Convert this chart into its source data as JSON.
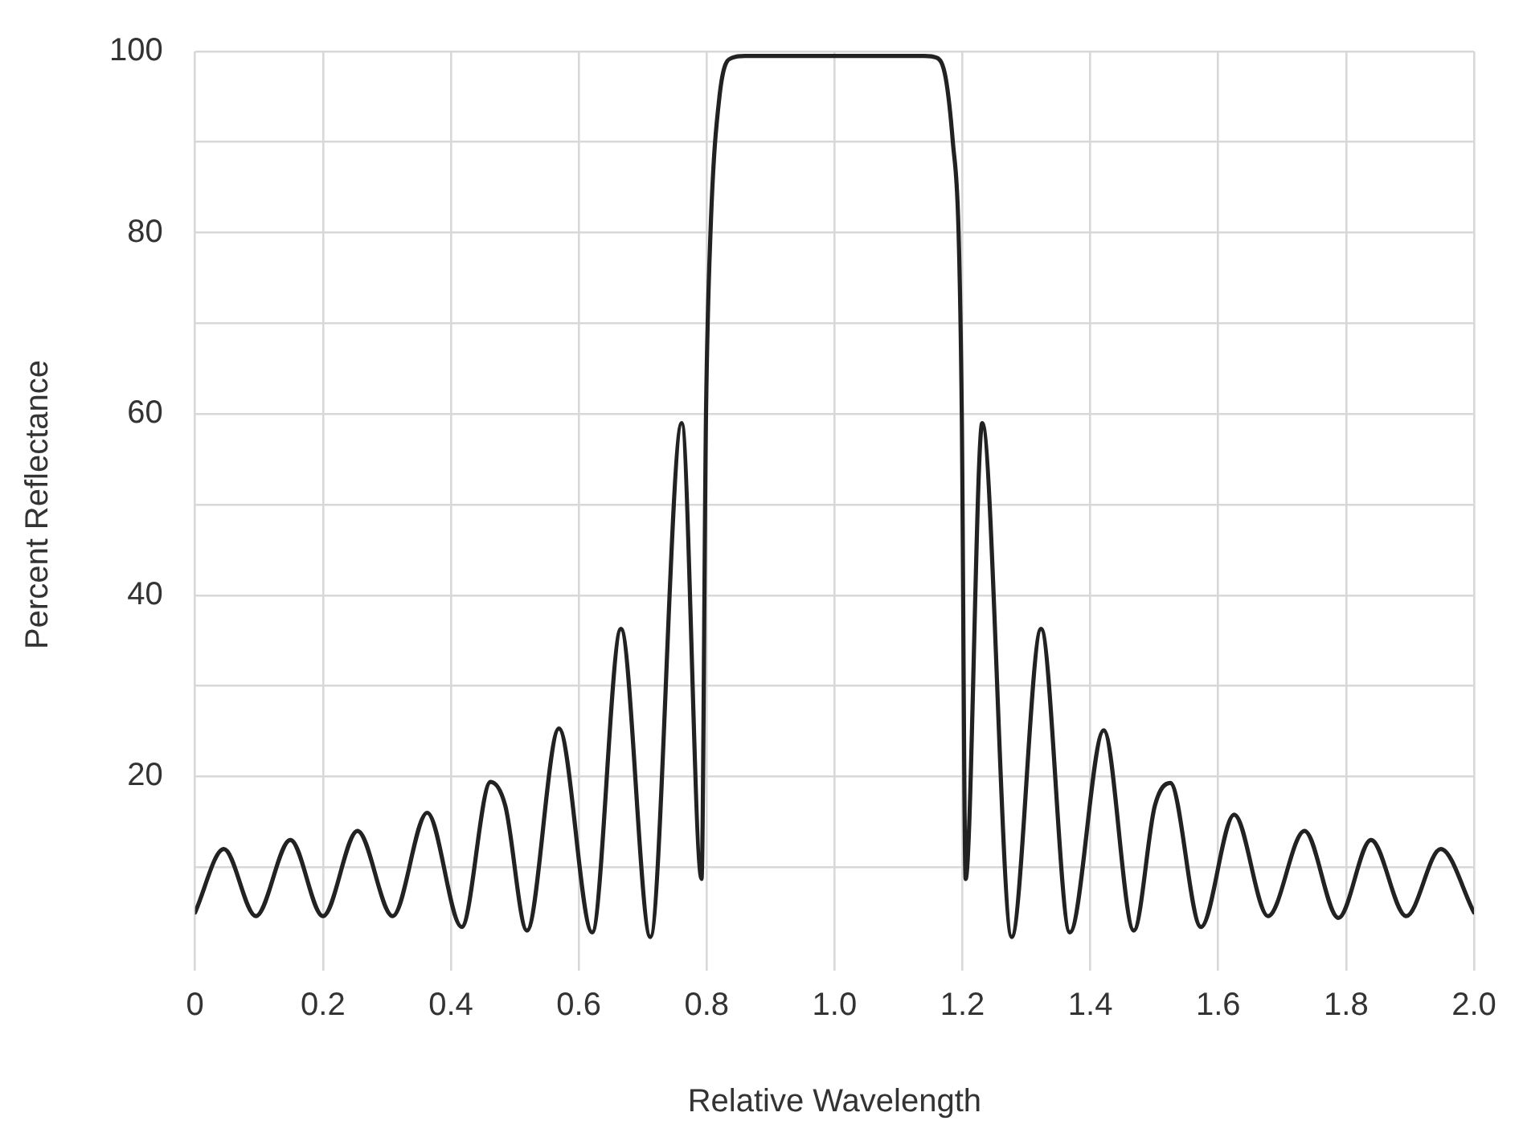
{
  "chart_data": {
    "type": "line",
    "xlabel": "Relative Wavelength",
    "ylabel": "Percent Reflectance",
    "x": [
      0,
      0.045,
      0.095,
      0.149,
      0.2,
      0.254,
      0.309,
      0.363,
      0.417,
      0.462,
      0.485,
      0.519,
      0.569,
      0.621,
      0.666,
      0.712,
      0.761,
      0.792,
      0.799,
      0.806,
      0.82,
      0.84,
      0.86,
      1.0,
      1.14,
      1.16,
      1.174,
      1.185,
      1.194,
      1.199,
      1.205,
      1.231,
      1.277,
      1.323,
      1.368,
      1.421,
      1.468,
      1.501,
      1.525,
      1.573,
      1.625,
      1.678,
      1.735,
      1.788,
      1.839,
      1.894,
      1.948,
      2.0
    ],
    "series": [
      {
        "color": "#222222",
        "values": [
          5,
          12,
          4.6,
          13,
          4.6,
          14,
          4.6,
          16,
          3.4,
          19.4,
          16.8,
          3,
          25.3,
          2.8,
          36.3,
          2.3,
          59,
          8.7,
          60,
          80,
          95,
          99.3,
          99.5,
          99.5,
          99.5,
          99.3,
          97,
          90,
          80,
          60,
          8.7,
          59,
          2.3,
          36.3,
          2.8,
          25.1,
          3,
          16.8,
          19.3,
          3.4,
          15.8,
          4.6,
          14,
          4.4,
          13,
          4.6,
          12,
          5
        ]
      }
    ],
    "xlim": [
      0,
      2
    ],
    "xticks": [
      0,
      0.2,
      0.4,
      0.6,
      0.8,
      {
        "value": 1,
        "label": "1.0"
      },
      1.2,
      1.4,
      1.6,
      1.8,
      {
        "value": 2,
        "label": "2.0"
      }
    ],
    "ylim": [
      0,
      100
    ],
    "yticks": [
      {
        "value": 10,
        "label": null
      },
      20,
      {
        "value": 30,
        "label": null
      },
      40,
      {
        "value": 50,
        "label": null
      },
      60,
      {
        "value": 70,
        "label": null
      },
      80,
      {
        "value": 90,
        "label": null
      },
      100
    ],
    "grid": true,
    "legend": false,
    "marker": "none",
    "line_style": "solid"
  }
}
